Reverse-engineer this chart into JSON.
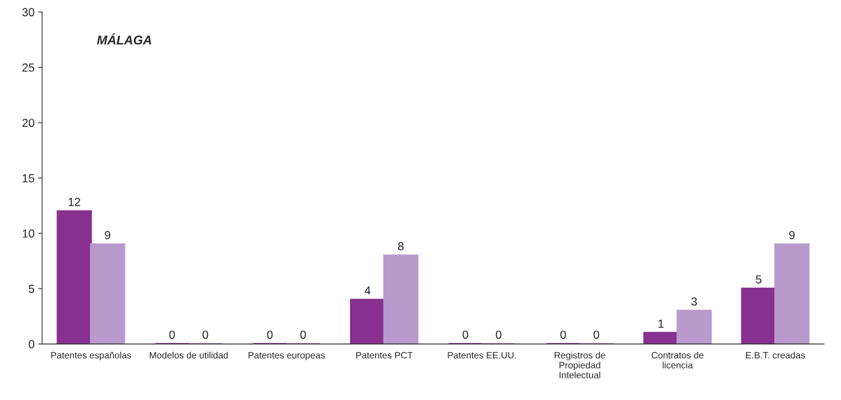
{
  "chart_data": {
    "type": "bar",
    "title": "MÁLAGA",
    "categories": [
      "Patentes españolas",
      "Modelos de utilidad",
      "Patentes europeas",
      "Patentes PCT",
      "Patentes EE.UU.",
      "Registros de\nPropiedad\nIntelectual",
      "Contratos de\nlicencia",
      "E.B.T. creadas"
    ],
    "series": [
      {
        "color": "#87308f",
        "values": [
          12,
          0,
          0,
          4,
          0,
          0,
          1,
          5
        ]
      },
      {
        "color": "#b89acc",
        "values": [
          9,
          0,
          0,
          8,
          0,
          0,
          3,
          9
        ]
      }
    ],
    "ylim": [
      0,
      30
    ],
    "yticks": [
      0,
      5,
      10,
      15,
      20,
      25,
      30
    ],
    "grid": false,
    "data_labels": true
  }
}
